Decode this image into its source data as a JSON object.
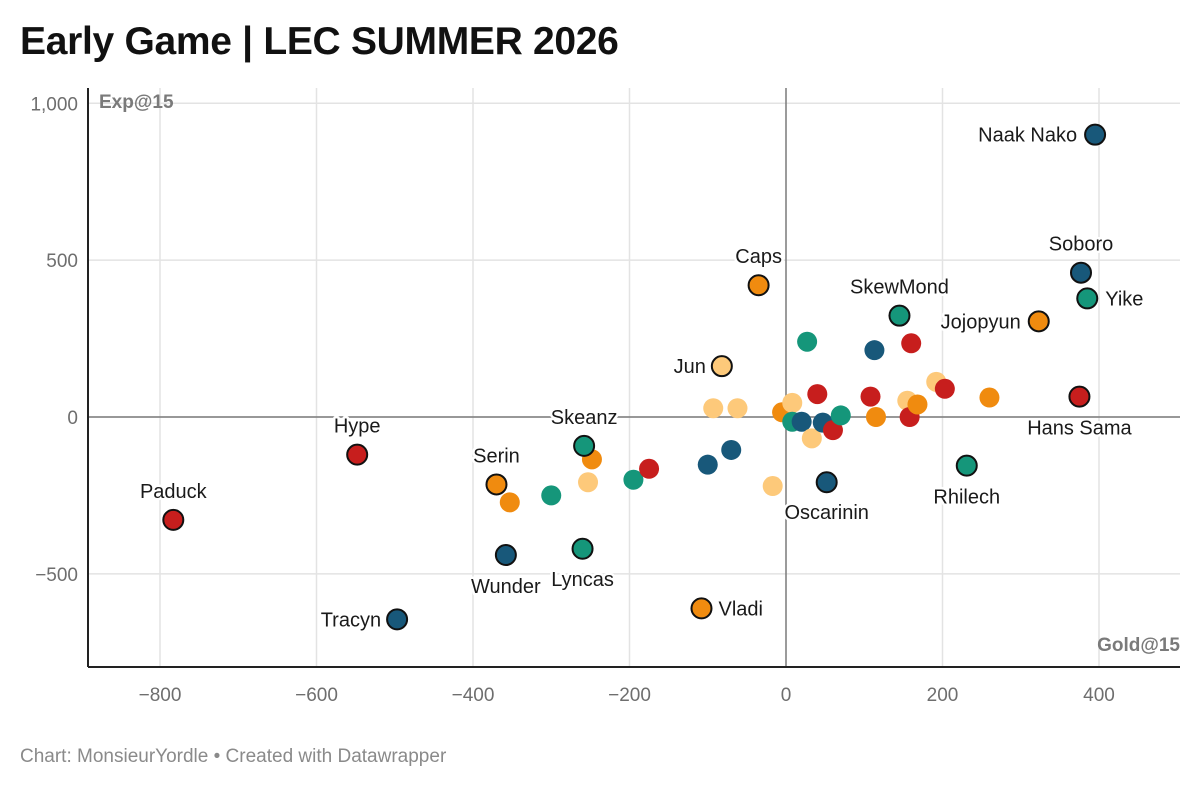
{
  "title": "Early Game | LEC SUMMER 2026",
  "source": "Chart: MonsieurYordle • Created with Datawrapper",
  "chart_data": {
    "type": "scatter",
    "xlabel": "Gold@15",
    "ylabel": "Exp@15",
    "xlim": [
      -900,
      505
    ],
    "ylim": [
      -800,
      1040
    ],
    "xticks": [
      -800,
      -600,
      -400,
      -200,
      0,
      200,
      400
    ],
    "xtick_labels": [
      "−800",
      "−600",
      "−400",
      "−200",
      "0",
      "200",
      "400"
    ],
    "yticks": [
      -500,
      0,
      500,
      1000
    ],
    "ytick_labels": [
      "−500",
      "0",
      "500",
      "1,000"
    ],
    "grid": true,
    "colors": {
      "red": "#c71e1d",
      "navy": "#18587a",
      "green": "#15967a",
      "orange": "#f08b0f",
      "light": "#fdc97a"
    },
    "points": [
      {
        "label": "Naak Nako",
        "x": 395,
        "y": 900,
        "color": "navy",
        "highlight": true
      },
      {
        "label": "Soboro",
        "x": 377,
        "y": 460,
        "color": "navy",
        "highlight": true
      },
      {
        "label": "Yike",
        "x": 385,
        "y": 378,
        "color": "green",
        "highlight": true
      },
      {
        "label": "Jojopyun",
        "x": 323,
        "y": 305,
        "color": "orange",
        "highlight": true
      },
      {
        "label": "SkewMond",
        "x": 145,
        "y": 323,
        "color": "green",
        "highlight": true
      },
      {
        "label": "Caps",
        "x": -35,
        "y": 420,
        "color": "orange",
        "highlight": true
      },
      {
        "label": "Jun",
        "x": -82,
        "y": 162,
        "color": "light",
        "highlight": true
      },
      {
        "label": "Hans Sama",
        "x": 375,
        "y": 65,
        "color": "red",
        "highlight": true
      },
      {
        "label": "Rhilech",
        "x": 231,
        "y": -155,
        "color": "green",
        "highlight": true
      },
      {
        "label": "Oscarinin",
        "x": 52,
        "y": -208,
        "color": "navy",
        "highlight": true
      },
      {
        "label": "Skeanz",
        "x": -258,
        "y": -92,
        "color": "green",
        "highlight": true
      },
      {
        "label": "Hype",
        "x": -548,
        "y": -120,
        "color": "red",
        "highlight": true
      },
      {
        "label": "Serin",
        "x": -370,
        "y": -215,
        "color": "orange",
        "highlight": true
      },
      {
        "label": "Paduck",
        "x": -783,
        "y": -328,
        "color": "red",
        "highlight": true
      },
      {
        "label": "Wunder",
        "x": -358,
        "y": -440,
        "color": "navy",
        "highlight": true
      },
      {
        "label": "Lyncas",
        "x": -260,
        "y": -420,
        "color": "green",
        "highlight": true
      },
      {
        "label": "Tracyn",
        "x": -497,
        "y": -645,
        "color": "navy",
        "highlight": true
      },
      {
        "label": "Vladi",
        "x": -108,
        "y": -610,
        "color": "orange",
        "highlight": true
      },
      {
        "label": "",
        "x": -353,
        "y": -272,
        "color": "orange",
        "highlight": false
      },
      {
        "label": "",
        "x": -300,
        "y": -250,
        "color": "green",
        "highlight": false
      },
      {
        "label": "",
        "x": -253,
        "y": -208,
        "color": "light",
        "highlight": false
      },
      {
        "label": "",
        "x": -248,
        "y": -135,
        "color": "orange",
        "highlight": false
      },
      {
        "label": "",
        "x": -195,
        "y": -200,
        "color": "green",
        "highlight": false
      },
      {
        "label": "",
        "x": -175,
        "y": -165,
        "color": "red",
        "highlight": false
      },
      {
        "label": "",
        "x": -100,
        "y": -152,
        "color": "navy",
        "highlight": false
      },
      {
        "label": "",
        "x": -93,
        "y": 28,
        "color": "light",
        "highlight": false
      },
      {
        "label": "",
        "x": -70,
        "y": -105,
        "color": "navy",
        "highlight": false
      },
      {
        "label": "",
        "x": -62,
        "y": 28,
        "color": "light",
        "highlight": false
      },
      {
        "label": "",
        "x": -17,
        "y": -220,
        "color": "light",
        "highlight": false
      },
      {
        "label": "",
        "x": -5,
        "y": 15,
        "color": "orange",
        "highlight": false
      },
      {
        "label": "",
        "x": 8,
        "y": 45,
        "color": "light",
        "highlight": false
      },
      {
        "label": "",
        "x": 8,
        "y": -15,
        "color": "green",
        "highlight": false
      },
      {
        "label": "",
        "x": 20,
        "y": -15,
        "color": "navy",
        "highlight": false
      },
      {
        "label": "",
        "x": 27,
        "y": 240,
        "color": "green",
        "highlight": false
      },
      {
        "label": "",
        "x": 33,
        "y": -68,
        "color": "light",
        "highlight": false
      },
      {
        "label": "",
        "x": 40,
        "y": 73,
        "color": "red",
        "highlight": false
      },
      {
        "label": "",
        "x": 47,
        "y": -18,
        "color": "navy",
        "highlight": false
      },
      {
        "label": "",
        "x": 60,
        "y": -42,
        "color": "red",
        "highlight": false
      },
      {
        "label": "",
        "x": 70,
        "y": 5,
        "color": "green",
        "highlight": false
      },
      {
        "label": "",
        "x": 108,
        "y": 65,
        "color": "red",
        "highlight": false
      },
      {
        "label": "",
        "x": 113,
        "y": 213,
        "color": "navy",
        "highlight": false
      },
      {
        "label": "",
        "x": 115,
        "y": 0,
        "color": "orange",
        "highlight": false
      },
      {
        "label": "",
        "x": 155,
        "y": 52,
        "color": "light",
        "highlight": false
      },
      {
        "label": "",
        "x": 158,
        "y": 0,
        "color": "red",
        "highlight": false
      },
      {
        "label": "",
        "x": 160,
        "y": 235,
        "color": "red",
        "highlight": false
      },
      {
        "label": "",
        "x": 168,
        "y": 40,
        "color": "orange",
        "highlight": false
      },
      {
        "label": "",
        "x": 192,
        "y": 112,
        "color": "light",
        "highlight": false
      },
      {
        "label": "",
        "x": 203,
        "y": 90,
        "color": "red",
        "highlight": false
      },
      {
        "label": "",
        "x": 260,
        "y": 62,
        "color": "orange",
        "highlight": false
      }
    ]
  }
}
